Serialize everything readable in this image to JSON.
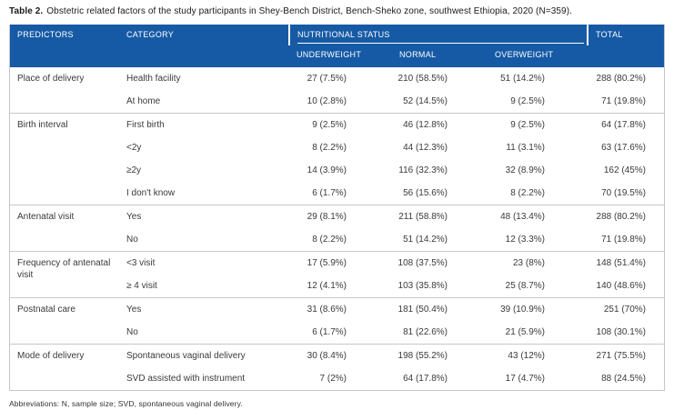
{
  "title": {
    "label": "Table 2.",
    "text": "Obstetric related factors of the study participants in Shey-Bench District, Bench-Sheko zone, southwest Ethiopia, 2020 (N=359)."
  },
  "table": {
    "header": {
      "predictors": "PREDICTORS",
      "category": "CATEGORY",
      "group": "NUTRITIONAL STATUS",
      "subcolumns": [
        "UNDERWEIGHT",
        "NORMAL",
        "OVERWEIGHT"
      ],
      "total": "TOTAL"
    },
    "groups": [
      {
        "predictor": "Place of delivery",
        "rows": [
          {
            "category": "Health facility",
            "underweight": "27 (7.5%)",
            "normal": "210 (58.5%)",
            "overweight": "51 (14.2%)",
            "total": "288 (80.2%)"
          },
          {
            "category": "At home",
            "underweight": "10 (2.8%)",
            "normal": "52 (14.5%)",
            "overweight": "9 (2.5%)",
            "total": "71 (19.8%)"
          }
        ]
      },
      {
        "predictor": "Birth interval",
        "rows": [
          {
            "category": "First birth",
            "underweight": "9 (2.5%)",
            "normal": "46 (12.8%)",
            "overweight": "9 (2.5%)",
            "total": "64 (17.8%)"
          },
          {
            "category": "<2y",
            "underweight": "8 (2.2%)",
            "normal": "44 (12.3%)",
            "overweight": "11 (3.1%)",
            "total": "63 (17.6%)"
          },
          {
            "category": "≥2y",
            "underweight": "14 (3.9%)",
            "normal": "116 (32.3%)",
            "overweight": "32 (8.9%)",
            "total": "162 (45%)"
          },
          {
            "category": "I don't know",
            "underweight": "6 (1.7%)",
            "normal": "56 (15.6%)",
            "overweight": "8 (2.2%)",
            "total": "70 (19.5%)"
          }
        ]
      },
      {
        "predictor": "Antenatal visit",
        "rows": [
          {
            "category": "Yes",
            "underweight": "29 (8.1%)",
            "normal": "211 (58.8%)",
            "overweight": "48 (13.4%)",
            "total": "288 (80.2%)"
          },
          {
            "category": "No",
            "underweight": "8 (2.2%)",
            "normal": "51 (14.2%)",
            "overweight": "12 (3.3%)",
            "total": "71 (19.8%)"
          }
        ]
      },
      {
        "predictor": "Frequency of antenatal visit",
        "rows": [
          {
            "category": "<3 visit",
            "underweight": "17 (5.9%)",
            "normal": "108 (37.5%)",
            "overweight": "23 (8%)",
            "total": "148 (51.4%)"
          },
          {
            "category": "≥ 4 visit",
            "underweight": "12 (4.1%)",
            "normal": "103 (35.8%)",
            "overweight": "25 (8.7%)",
            "total": "140 (48.6%)"
          }
        ]
      },
      {
        "predictor": "Postnatal care",
        "rows": [
          {
            "category": "Yes",
            "underweight": "31 (8.6%)",
            "normal": "181 (50.4%)",
            "overweight": "39 (10.9%)",
            "total": "251 (70%)"
          },
          {
            "category": "No",
            "underweight": "6 (1.7%)",
            "normal": "81 (22.6%)",
            "overweight": "21 (5.9%)",
            "total": "108 (30.1%)"
          }
        ]
      },
      {
        "predictor": "Mode of delivery",
        "rows": [
          {
            "category": "Spontaneous vaginal delivery",
            "underweight": "30 (8.4%)",
            "normal": "198 (55.2%)",
            "overweight": "43 (12%)",
            "total": "271 (75.5%)"
          },
          {
            "category": "SVD assisted with instrument",
            "underweight": "7 (2%)",
            "normal": "64 (17.8%)",
            "overweight": "17 (4.7%)",
            "total": "88 (24.5%)"
          }
        ]
      }
    ]
  },
  "footnote": "Abbreviations: N, sample size; SVD, spontaneous vaginal delivery.",
  "colors": {
    "header_bg": "#165AA5",
    "header_text": "#ffffff",
    "body_text": "#3a3a3a",
    "separator": "#c9c9c9",
    "outer_border": "#c6c6c6"
  }
}
